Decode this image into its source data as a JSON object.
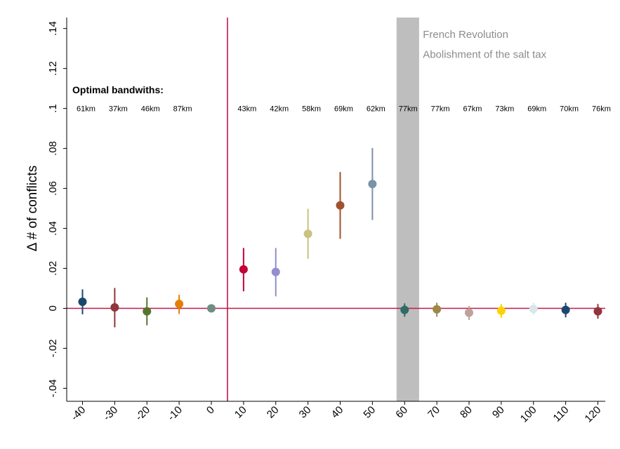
{
  "chart_data": {
    "type": "scatter",
    "ylabel": "Δ # of conflicts",
    "xlabel": "",
    "xlim": [
      -45,
      122
    ],
    "ylim": [
      -0.045,
      0.145
    ],
    "x_ticks": [
      -40,
      -30,
      -20,
      -10,
      0,
      10,
      20,
      30,
      40,
      50,
      60,
      70,
      80,
      90,
      100,
      110,
      120
    ],
    "y_ticks": [
      {
        "value": -0.04,
        "label": "-.04"
      },
      {
        "value": -0.02,
        "label": "-.02"
      },
      {
        "value": 0,
        "label": "0"
      },
      {
        "value": 0.02,
        "label": ".02"
      },
      {
        "value": 0.04,
        "label": ".04"
      },
      {
        "value": 0.06,
        "label": ".06"
      },
      {
        "value": 0.08,
        "label": ".08"
      },
      {
        "value": 0.1,
        "label": ".1"
      },
      {
        "value": 0.12,
        "label": ".12"
      },
      {
        "value": 0.14,
        "label": ".14"
      }
    ],
    "grid": false,
    "reference_lines": {
      "horizontal_y": 0,
      "vertical_x": 5,
      "color": "#c0184a"
    },
    "shaded_band": {
      "x_start": 57.5,
      "x_end": 64.5,
      "color": "#bebebe"
    },
    "annotations": [
      {
        "text": "French Revolution",
        "x": 65,
        "y": 0.137
      },
      {
        "text": "Abolishment of the salt tax",
        "x": 65,
        "y": 0.127
      }
    ],
    "bandwidth_title": "Optimal bandwiths:",
    "points": [
      {
        "x": -40,
        "y": 0.0033,
        "lo": -0.003,
        "hi": 0.0095,
        "color": "#1a476f",
        "bandwidth": "61km"
      },
      {
        "x": -30,
        "y": 0.0005,
        "lo": -0.0095,
        "hi": 0.0102,
        "color": "#90353b",
        "bandwidth": "37km"
      },
      {
        "x": -20,
        "y": -0.0015,
        "lo": -0.0085,
        "hi": 0.0055,
        "color": "#55752f",
        "bandwidth": "46km"
      },
      {
        "x": -10,
        "y": 0.0022,
        "lo": -0.0028,
        "hi": 0.0068,
        "color": "#e37e00",
        "bandwidth": "87km"
      },
      {
        "x": 0,
        "y": 0.0,
        "lo": 0.0,
        "hi": 0.0,
        "color": "#6e8e84",
        "bandwidth": ""
      },
      {
        "x": 10,
        "y": 0.0195,
        "lo": 0.0085,
        "hi": 0.0302,
        "color": "#c10534",
        "bandwidth": "43km"
      },
      {
        "x": 20,
        "y": 0.0182,
        "lo": 0.006,
        "hi": 0.0302,
        "color": "#938dd2",
        "bandwidth": "42km"
      },
      {
        "x": 30,
        "y": 0.0373,
        "lo": 0.0248,
        "hi": 0.0498,
        "color": "#cac27e",
        "bandwidth": "58km"
      },
      {
        "x": 40,
        "y": 0.0515,
        "lo": 0.0348,
        "hi": 0.0682,
        "color": "#a0522d",
        "bandwidth": "69km"
      },
      {
        "x": 50,
        "y": 0.0622,
        "lo": 0.0442,
        "hi": 0.0802,
        "color": "#7b92a8",
        "bandwidth": "62km"
      },
      {
        "x": 60,
        "y": -0.0008,
        "lo": -0.0042,
        "hi": 0.0025,
        "color": "#2d6d66",
        "bandwidth": "77km"
      },
      {
        "x": 70,
        "y": -0.0005,
        "lo": -0.0042,
        "hi": 0.0028,
        "color": "#9c8847",
        "bandwidth": "77km"
      },
      {
        "x": 80,
        "y": -0.0022,
        "lo": -0.0058,
        "hi": 0.0012,
        "color": "#bfa19c",
        "bandwidth": "67km"
      },
      {
        "x": 90,
        "y": -0.0012,
        "lo": -0.0048,
        "hi": 0.0022,
        "color": "#ffd200",
        "bandwidth": "73km"
      },
      {
        "x": 100,
        "y": -0.0003,
        "lo": -0.0033,
        "hi": 0.0028,
        "color": "#d9e6eb",
        "bandwidth": "69km"
      },
      {
        "x": 110,
        "y": -0.0008,
        "lo": -0.0045,
        "hi": 0.0028,
        "color": "#1a476f",
        "bandwidth": "70km"
      },
      {
        "x": 120,
        "y": -0.0015,
        "lo": -0.0052,
        "hi": 0.0022,
        "color": "#90353b",
        "bandwidth": "76km"
      }
    ]
  }
}
